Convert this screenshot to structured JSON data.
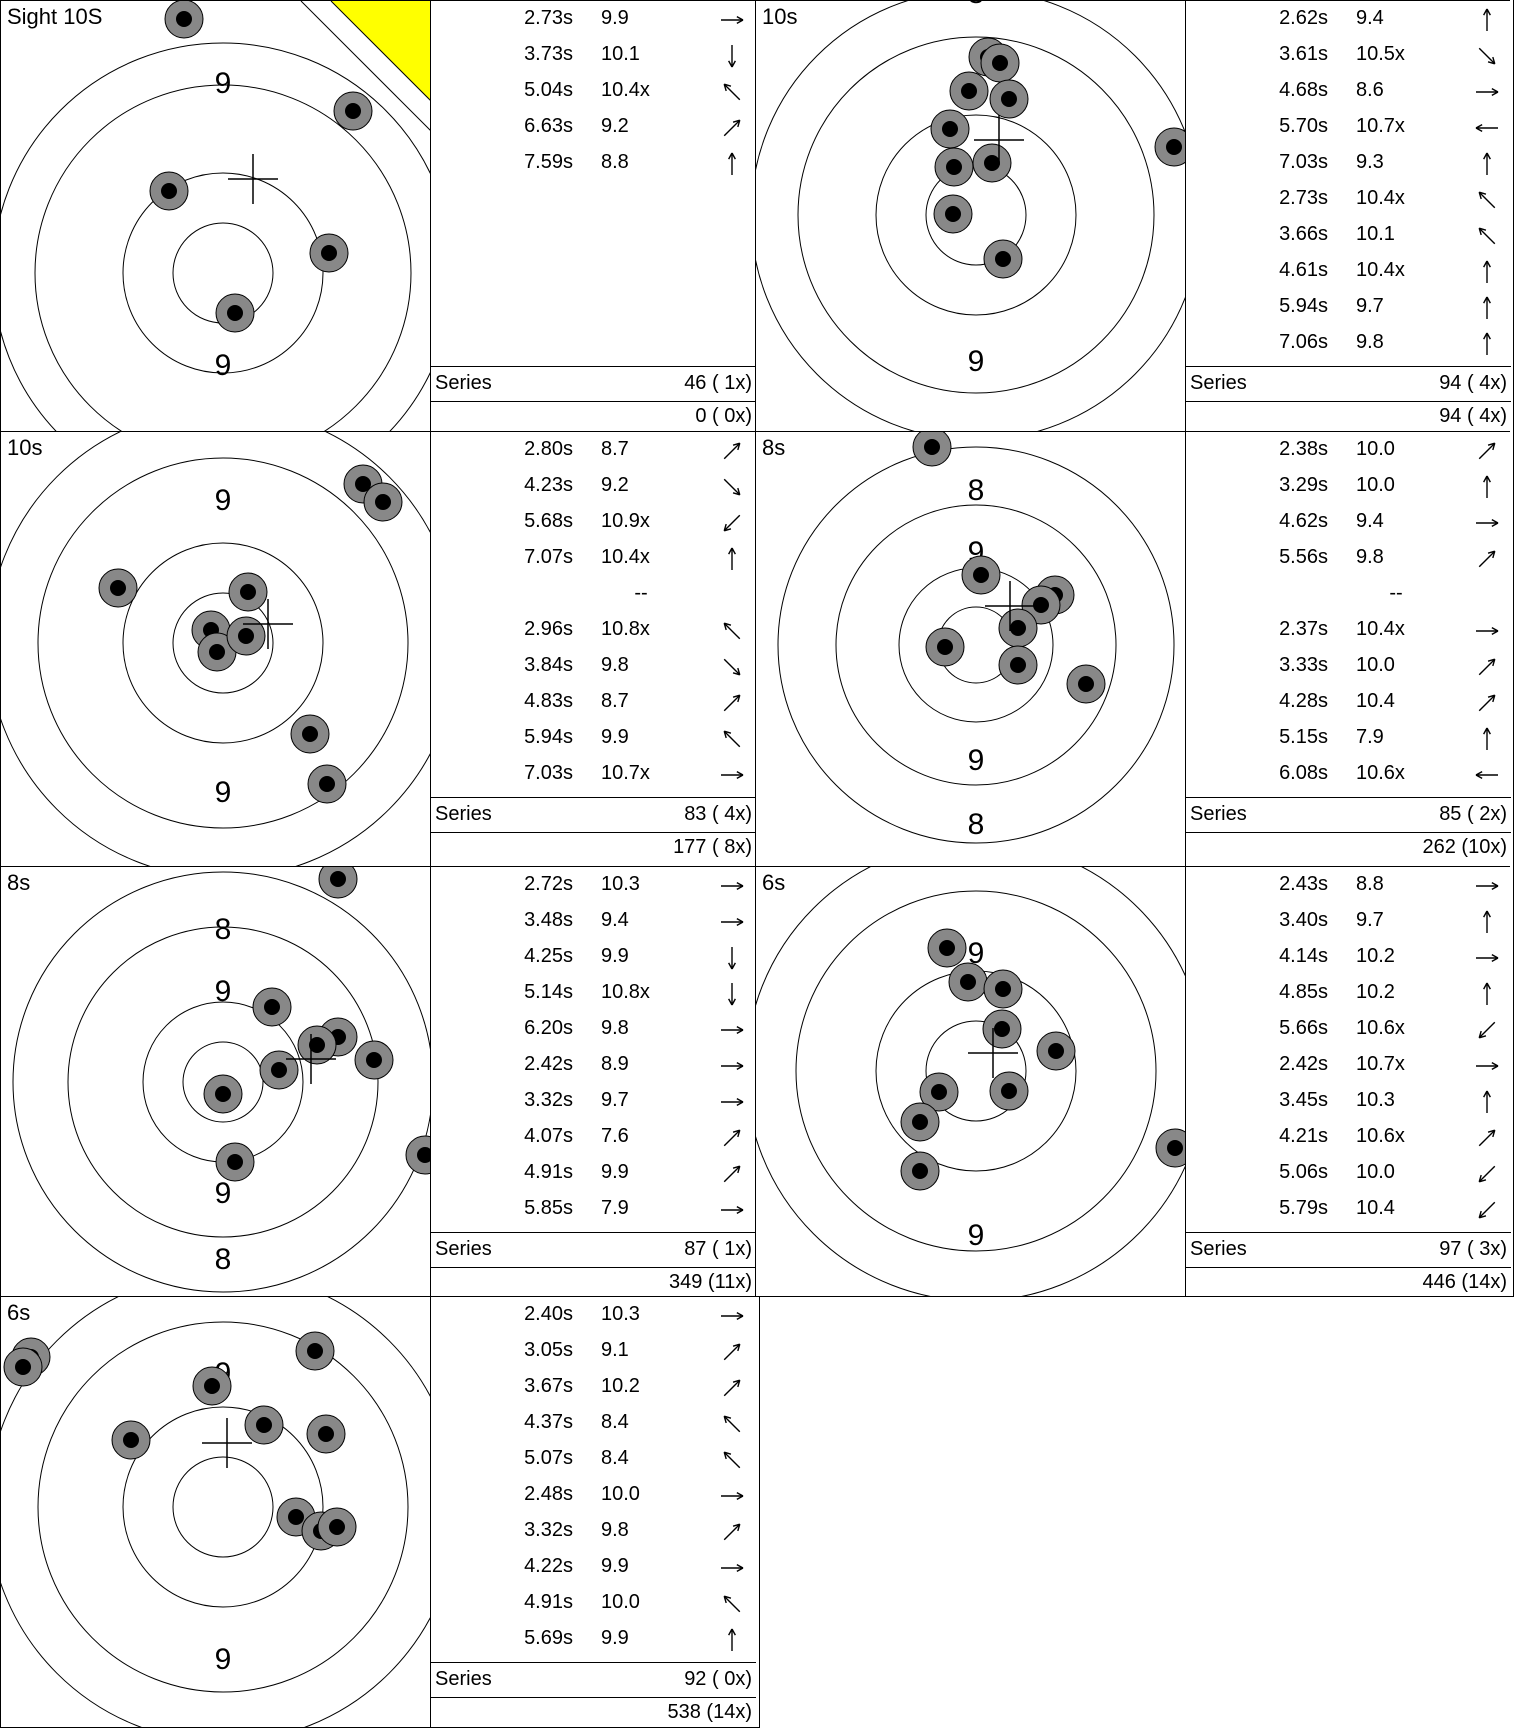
{
  "panels": [
    {
      "label": "Sight 10S",
      "sight": true,
      "ring_labels": [
        "9",
        "9"
      ],
      "shots": [
        {
          "time": "2.73s",
          "score": "9.9",
          "dir": "→↘"
        },
        {
          "time": "3.73s",
          "score": "10.1",
          "dir": "↓"
        },
        {
          "time": "5.04s",
          "score": "10.4x",
          "dir": "↖"
        },
        {
          "time": "6.63s",
          "score": "9.2",
          "dir": "↗"
        },
        {
          "time": "7.59s",
          "score": "8.8",
          "dir": "↑"
        }
      ],
      "series_label": "Series",
      "series": "46 ( 1x)",
      "total": "0 ( 0x)"
    },
    {
      "label": "10s",
      "ring_labels": [
        "8",
        "9",
        "8"
      ],
      "shots": [
        {
          "time": "2.62s",
          "score": "9.4",
          "dir": "↑"
        },
        {
          "time": "3.61s",
          "score": "10.5x",
          "dir": "↘"
        },
        {
          "time": "4.68s",
          "score": "8.6",
          "dir": "→"
        },
        {
          "time": "5.70s",
          "score": "10.7x",
          "dir": "←"
        },
        {
          "time": "7.03s",
          "score": "9.3",
          "dir": "↑"
        },
        {
          "time": "2.73s",
          "score": "10.4x",
          "dir": "↖"
        },
        {
          "time": "3.66s",
          "score": "10.1",
          "dir": "↖"
        },
        {
          "time": "4.61s",
          "score": "10.4x",
          "dir": "↑"
        },
        {
          "time": "5.94s",
          "score": "9.7",
          "dir": "↑"
        },
        {
          "time": "7.06s",
          "score": "9.8",
          "dir": "↑"
        }
      ],
      "series_label": "Series",
      "series": "94 ( 4x)",
      "total": "94 ( 4x)"
    },
    {
      "label": "10s",
      "ring_labels": [
        "9",
        "9"
      ],
      "shots": [
        {
          "time": "2.80s",
          "score": "8.7",
          "dir": "↗"
        },
        {
          "time": "4.23s",
          "score": "9.2",
          "dir": "↘"
        },
        {
          "time": "5.68s",
          "score": "10.9x",
          "dir": "↙"
        },
        {
          "time": "7.07s",
          "score": "10.4x",
          "dir": "↑"
        },
        {
          "sep": "--"
        },
        {
          "time": "2.96s",
          "score": "10.8x",
          "dir": "↖"
        },
        {
          "time": "3.84s",
          "score": "9.8",
          "dir": "↘"
        },
        {
          "time": "4.83s",
          "score": "8.7",
          "dir": "↗"
        },
        {
          "time": "5.94s",
          "score": "9.9",
          "dir": "↖"
        },
        {
          "time": "7.03s",
          "score": "10.7x",
          "dir": "→"
        }
      ],
      "series_label": "Series",
      "series": "83 ( 4x)",
      "total": "177 ( 8x)"
    },
    {
      "label": "8s",
      "ring_labels": [
        "8",
        "9",
        "9",
        "8"
      ],
      "shots": [
        {
          "time": "2.38s",
          "score": "10.0",
          "dir": "↗"
        },
        {
          "time": "3.29s",
          "score": "10.0",
          "dir": "↑"
        },
        {
          "time": "4.62s",
          "score": "9.4",
          "dir": "→"
        },
        {
          "time": "5.56s",
          "score": "9.8",
          "dir": "↗"
        },
        {
          "sep": "--"
        },
        {
          "time": "2.37s",
          "score": "10.4x",
          "dir": "→"
        },
        {
          "time": "3.33s",
          "score": "10.0",
          "dir": "↗"
        },
        {
          "time": "4.28s",
          "score": "10.4",
          "dir": "↗"
        },
        {
          "time": "5.15s",
          "score": "7.9",
          "dir": "↑"
        },
        {
          "time": "6.08s",
          "score": "10.6x",
          "dir": "←"
        }
      ],
      "series_label": "Series",
      "series": "85 ( 2x)",
      "total": "262 (10x)"
    },
    {
      "label": "8s",
      "ring_labels": [
        "8",
        "9",
        "9",
        "8"
      ],
      "shots": [
        {
          "time": "2.72s",
          "score": "10.3",
          "dir": "→"
        },
        {
          "time": "3.48s",
          "score": "9.4",
          "dir": "→"
        },
        {
          "time": "4.25s",
          "score": "9.9",
          "dir": "↓"
        },
        {
          "time": "5.14s",
          "score": "10.8x",
          "dir": "↓"
        },
        {
          "time": "6.20s",
          "score": "9.8",
          "dir": "→"
        },
        {
          "time": "2.42s",
          "score": "8.9",
          "dir": "→"
        },
        {
          "time": "3.32s",
          "score": "9.7",
          "dir": "→"
        },
        {
          "time": "4.07s",
          "score": "7.6",
          "dir": "↗"
        },
        {
          "time": "4.91s",
          "score": "9.9",
          "dir": "↗"
        },
        {
          "time": "5.85s",
          "score": "7.9",
          "dir": "→"
        }
      ],
      "series_label": "Series",
      "series": "87 ( 1x)",
      "total": "349 (11x)"
    },
    {
      "label": "6s",
      "ring_labels": [
        "9",
        "9"
      ],
      "shots": [
        {
          "time": "2.43s",
          "score": "8.8",
          "dir": "→"
        },
        {
          "time": "3.40s",
          "score": "9.7",
          "dir": "↑"
        },
        {
          "time": "4.14s",
          "score": "10.2",
          "dir": "→"
        },
        {
          "time": "4.85s",
          "score": "10.2",
          "dir": "↑"
        },
        {
          "time": "5.66s",
          "score": "10.6x",
          "dir": "↙"
        },
        {
          "time": "2.42s",
          "score": "10.7x",
          "dir": "→"
        },
        {
          "time": "3.45s",
          "score": "10.3",
          "dir": "↑"
        },
        {
          "time": "4.21s",
          "score": "10.6x",
          "dir": "↗"
        },
        {
          "time": "5.06s",
          "score": "10.0",
          "dir": "↙"
        },
        {
          "time": "5.79s",
          "score": "10.4",
          "dir": "↙"
        }
      ],
      "series_label": "Series",
      "series": "97 ( 3x)",
      "total": "446 (14x)"
    },
    {
      "label": "6s",
      "ring_labels": [
        "9",
        "9"
      ],
      "shots": [
        {
          "time": "2.40s",
          "score": "10.3",
          "dir": "→"
        },
        {
          "time": "3.05s",
          "score": "9.1",
          "dir": "↗"
        },
        {
          "time": "3.67s",
          "score": "10.2",
          "dir": "↗"
        },
        {
          "time": "4.37s",
          "score": "8.4",
          "dir": "↖"
        },
        {
          "time": "5.07s",
          "score": "8.4",
          "dir": "↖"
        },
        {
          "time": "2.48s",
          "score": "10.0",
          "dir": "→"
        },
        {
          "time": "3.32s",
          "score": "9.8",
          "dir": "↗"
        },
        {
          "time": "4.22s",
          "score": "9.9",
          "dir": "→"
        },
        {
          "time": "4.91s",
          "score": "10.0",
          "dir": "↖"
        },
        {
          "time": "5.69s",
          "score": "9.9",
          "dir": "↑"
        }
      ],
      "series_label": "Series",
      "series": "92 ( 0x)",
      "total": "538 (14x)"
    }
  ],
  "colors": {
    "hole_outer": "#888888",
    "hole_inner": "#000000",
    "sight_marker": "#ffff00"
  }
}
